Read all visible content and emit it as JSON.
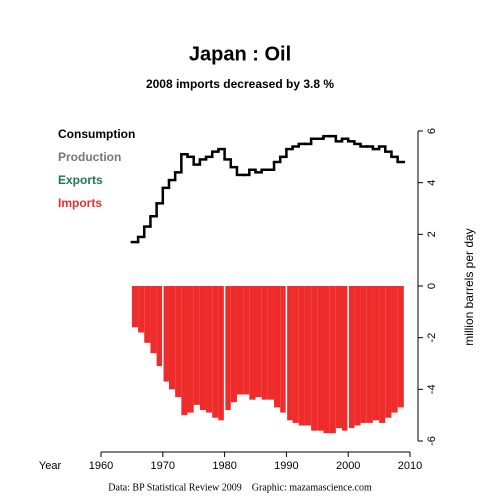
{
  "chart_data": {
    "type": "step-bar",
    "title": "Japan :  Oil",
    "subtitle": "2008 imports decreased by 3.8 %",
    "x_label": "Year",
    "y_label": "million barrels per day",
    "source": "Data: BP Statistical Review 2009    Graphic: mazamascience.com",
    "x": [
      1965,
      1966,
      1967,
      1968,
      1969,
      1970,
      1971,
      1972,
      1973,
      1974,
      1975,
      1976,
      1977,
      1978,
      1979,
      1980,
      1981,
      1982,
      1983,
      1984,
      1985,
      1986,
      1987,
      1988,
      1989,
      1990,
      1991,
      1992,
      1993,
      1994,
      1995,
      1996,
      1997,
      1998,
      1999,
      2000,
      2001,
      2002,
      2003,
      2004,
      2005,
      2006,
      2007,
      2008
    ],
    "series": [
      {
        "name": "Consumption",
        "color": "#000000",
        "style": "step",
        "values": [
          1.7,
          1.9,
          2.3,
          2.7,
          3.2,
          3.8,
          4.1,
          4.4,
          5.1,
          5.0,
          4.7,
          4.9,
          5.0,
          5.2,
          5.3,
          4.9,
          4.6,
          4.3,
          4.3,
          4.5,
          4.4,
          4.5,
          4.5,
          4.8,
          5.0,
          5.3,
          5.4,
          5.5,
          5.5,
          5.7,
          5.7,
          5.8,
          5.8,
          5.6,
          5.7,
          5.6,
          5.5,
          5.4,
          5.4,
          5.3,
          5.4,
          5.2,
          5.0,
          4.8
        ]
      },
      {
        "name": "Production",
        "color": "#777777",
        "style": "step",
        "values": [
          null,
          null,
          null,
          null,
          null,
          null,
          null,
          null,
          null,
          null,
          null,
          null,
          null,
          null,
          null,
          null,
          null,
          null,
          null,
          null,
          null,
          null,
          null,
          null,
          null,
          null,
          null,
          null,
          null,
          null,
          null,
          null,
          null,
          null,
          null,
          null,
          null,
          null,
          null,
          null,
          null,
          null,
          null,
          null
        ]
      },
      {
        "name": "Exports",
        "color": "#1a7a50",
        "style": "step",
        "values": [
          null,
          null,
          null,
          null,
          null,
          null,
          null,
          null,
          null,
          null,
          null,
          null,
          null,
          null,
          null,
          null,
          null,
          null,
          null,
          null,
          null,
          null,
          null,
          null,
          null,
          null,
          null,
          null,
          null,
          null,
          null,
          null,
          null,
          null,
          null,
          null,
          null,
          null,
          null,
          null,
          null,
          null,
          null,
          null
        ]
      },
      {
        "name": "Imports",
        "color": "#ee2c2c",
        "style": "bar",
        "values": [
          -1.6,
          -1.8,
          -2.2,
          -2.6,
          -3.1,
          -3.7,
          -4.0,
          -4.3,
          -5.0,
          -4.9,
          -4.6,
          -4.8,
          -4.9,
          -5.1,
          -5.2,
          -4.8,
          -4.5,
          -4.2,
          -4.2,
          -4.4,
          -4.3,
          -4.4,
          -4.4,
          -4.7,
          -4.9,
          -5.2,
          -5.3,
          -5.4,
          -5.4,
          -5.6,
          -5.6,
          -5.7,
          -5.7,
          -5.5,
          -5.6,
          -5.5,
          -5.4,
          -5.3,
          -5.3,
          -5.2,
          -5.3,
          -5.1,
          -4.9,
          -4.7
        ]
      }
    ],
    "xlim": [
      1960,
      2010
    ],
    "xticks": [
      1960,
      1970,
      1980,
      1990,
      2000,
      2010
    ],
    "ylim": [
      -6,
      6
    ],
    "yticks": [
      -6,
      -4,
      -2,
      0,
      2,
      4,
      6
    ],
    "legend": "top-left"
  }
}
